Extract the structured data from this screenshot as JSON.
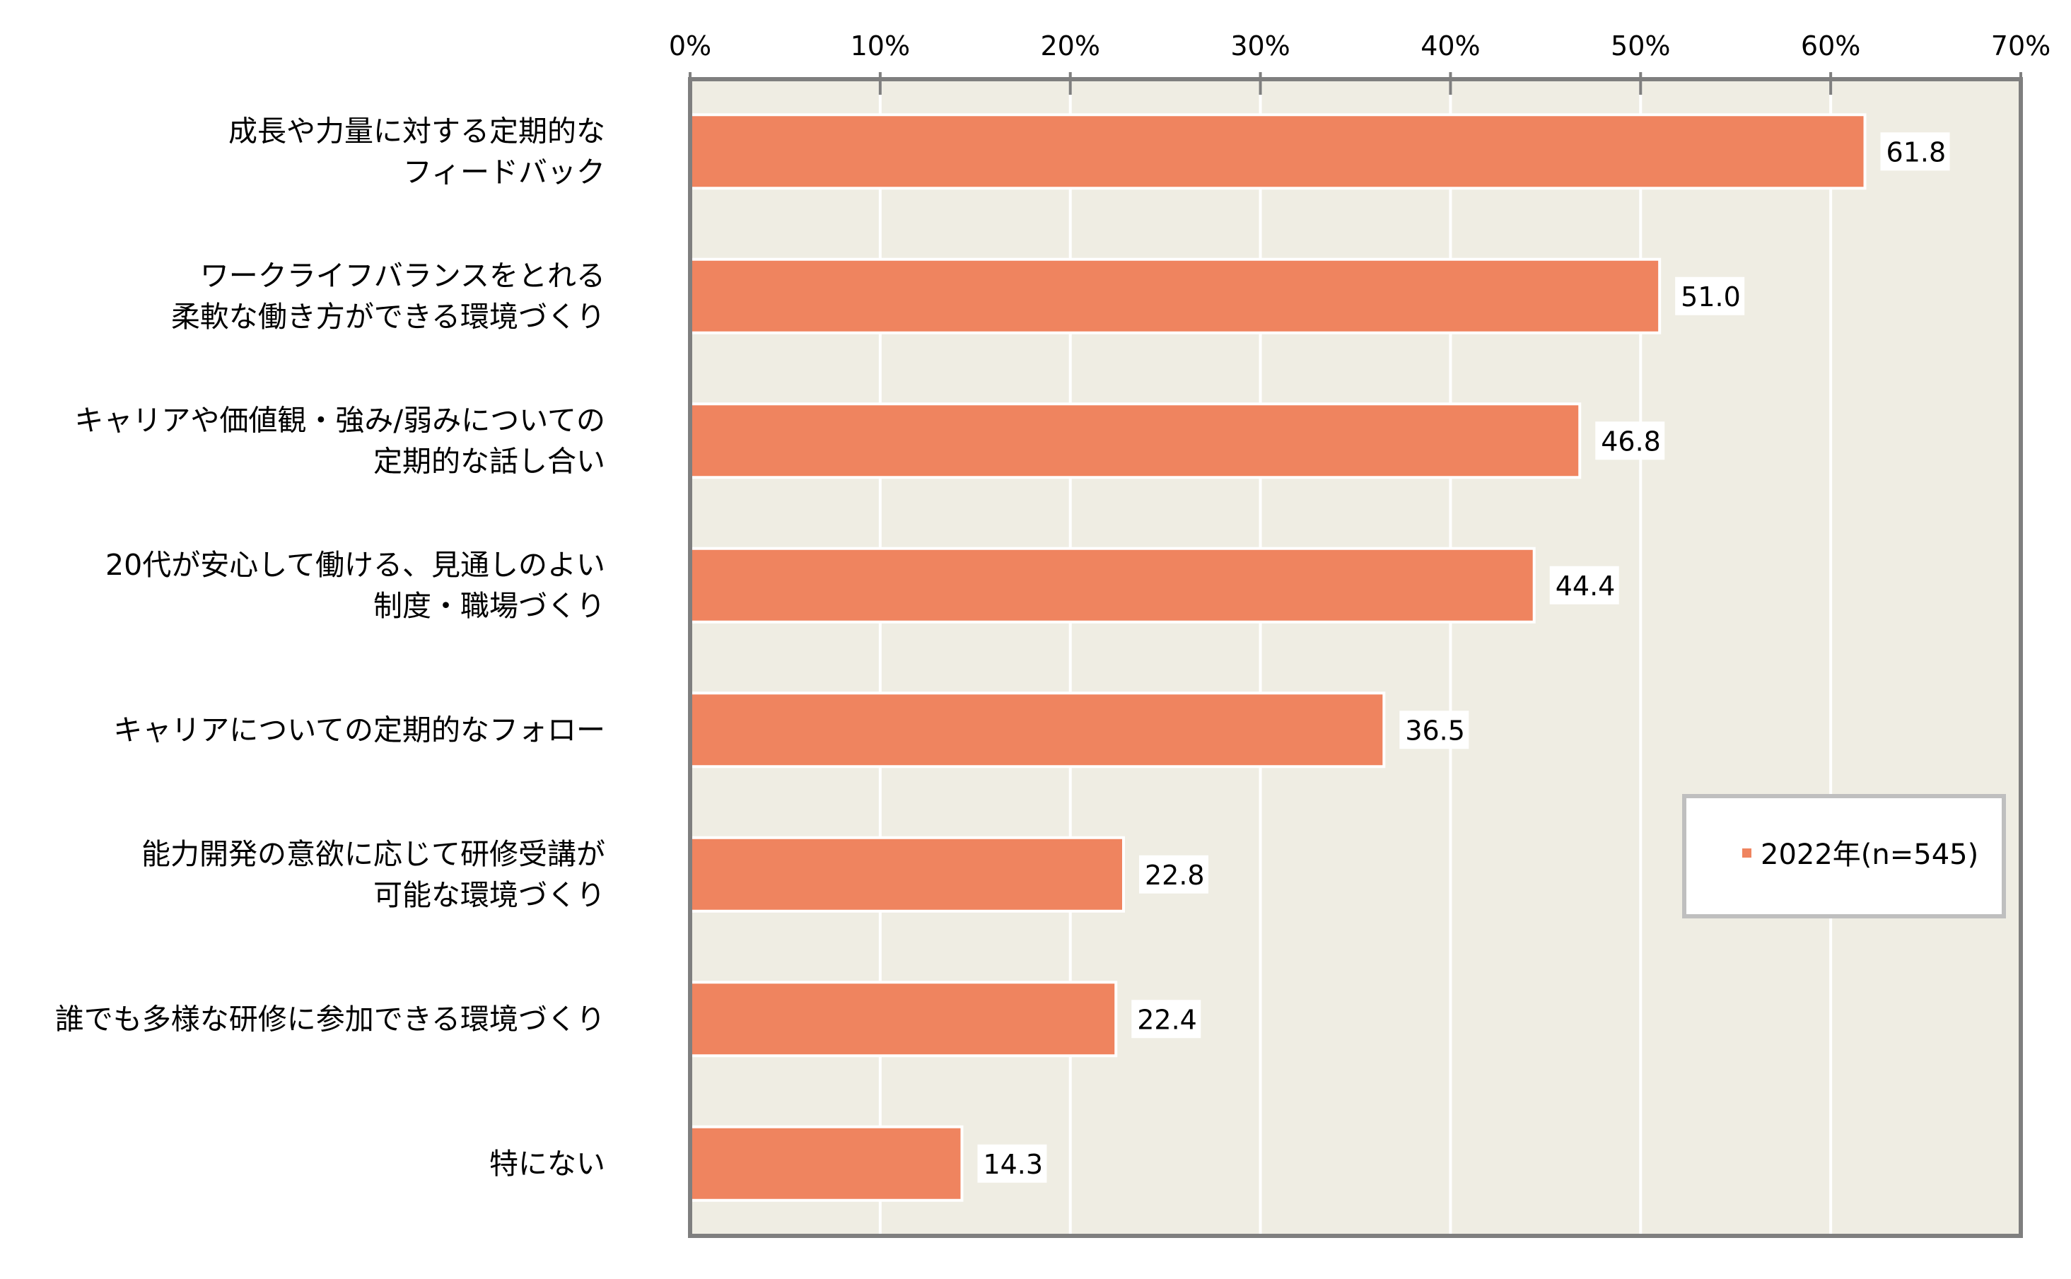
{
  "chart_data": {
    "type": "bar",
    "orientation": "horizontal",
    "categories": [
      [
        "成長や力量に対する定期的な",
        "フィードバック"
      ],
      [
        "ワークライフバランスをとれる",
        "柔軟な働き方ができる環境づくり"
      ],
      [
        "キャリアや価値観・強み/弱みについての",
        "定期的な話し合い"
      ],
      [
        "20代が安心して働ける、見通しのよい",
        "制度・職場づくり"
      ],
      [
        "キャリアについての定期的なフォロー"
      ],
      [
        "能力開発の意欲に応じて研修受講が",
        "可能な環境づくり"
      ],
      [
        "誰でも多様な研修に参加できる環境づくり"
      ],
      [
        "特にない"
      ]
    ],
    "series": [
      {
        "name": "2022年(n=545)",
        "values": [
          61.8,
          51.0,
          46.8,
          44.4,
          36.5,
          22.8,
          22.4,
          14.3
        ],
        "value_labels": [
          "61.8",
          "51.0",
          "46.8",
          "44.4",
          "36.5",
          "22.8",
          "22.4",
          "14.3"
        ]
      }
    ],
    "xlim": [
      0,
      70
    ],
    "xticks": [
      0,
      10,
      20,
      30,
      40,
      50,
      60,
      70
    ],
    "xtick_labels": [
      "0%",
      "10%",
      "20%",
      "30%",
      "40%",
      "50%",
      "60%",
      "70%"
    ],
    "grid": true,
    "legend_position": "right-middle",
    "title": "",
    "xlabel": "",
    "ylabel": ""
  },
  "colors": {
    "bar": "#EF845F",
    "plot_background": "#EFEDE3",
    "gridline": "#FFFFFF",
    "plot_border": "#7F7F7F",
    "legend_border": "#BFBFBF",
    "text": "#000000"
  }
}
